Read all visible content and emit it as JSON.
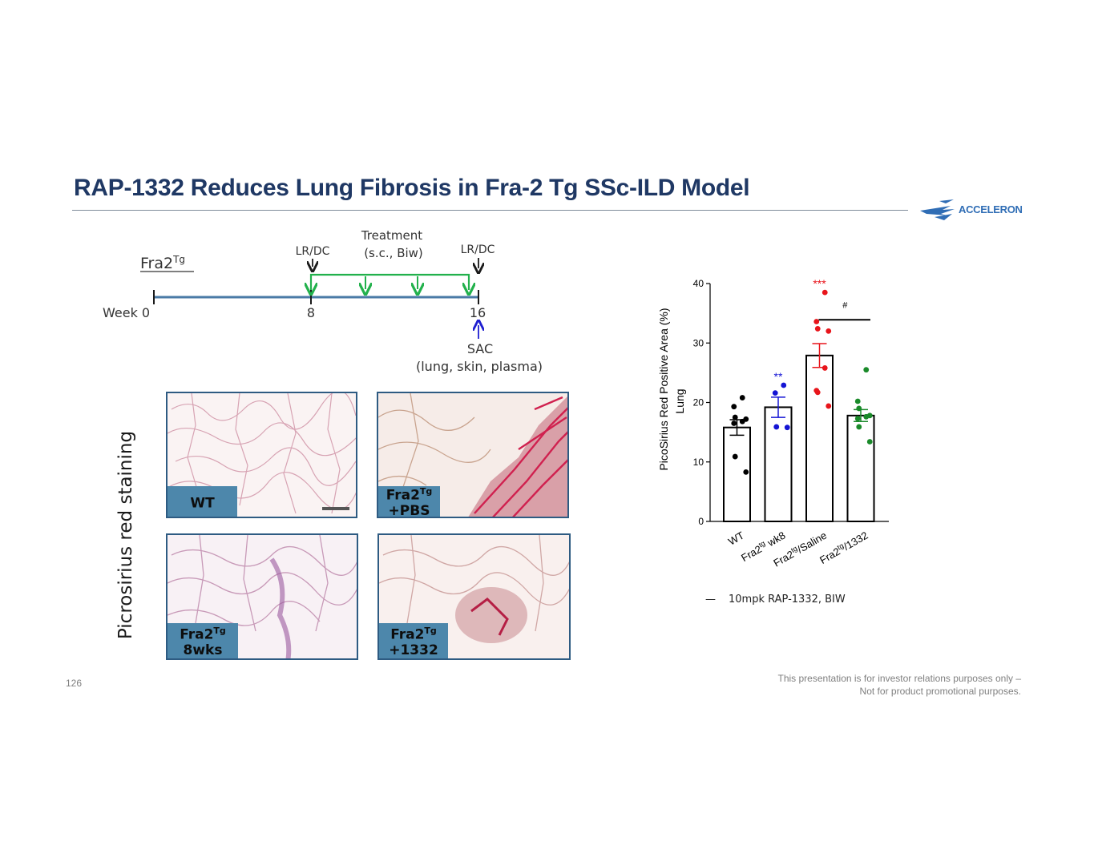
{
  "slide": {
    "title": "RAP-1332 Reduces Lung Fibrosis in Fra-2 Tg SSc-ILD Model",
    "logo_text": "ACCELERON",
    "page_number": "126",
    "disclaimer_line1": "This presentation is for investor relations purposes only –",
    "disclaimer_line2": "Not for product promotional purposes."
  },
  "timeline": {
    "model_label": "Fra2",
    "model_sup": "Tg",
    "week_label": "Week 0",
    "tick_8": "8",
    "tick_16": "16",
    "lrdc_left": "LR/DC",
    "lrdc_right": "LR/DC",
    "treatment_line1": "Treatment",
    "treatment_line2": "(s.c., Biw)",
    "sac_label": "SAC",
    "sac_detail": "(lung, skin, plasma)",
    "colors": {
      "axis": "#4a7aa6",
      "treatment": "#22b14c",
      "sac_arrow": "#1f1fd1"
    }
  },
  "images": {
    "side_label": "Picrosirius red staining",
    "panels": [
      {
        "line1": "WT",
        "line2": "",
        "sup": ""
      },
      {
        "line1": "Fra2",
        "line2": "+PBS",
        "sup": "Tg"
      },
      {
        "line1": "Fra2",
        "line2": "8wks",
        "sup": "Tg"
      },
      {
        "line1": "Fra2",
        "line2": "+1332",
        "sup": "Tg"
      }
    ]
  },
  "chart_data": {
    "type": "bar",
    "ylabel_line1": "PicoSirius Red Positive Area (%)",
    "ylabel_line2": "Lung",
    "ylim": [
      0,
      40
    ],
    "yticks": [
      0,
      10,
      20,
      30,
      40
    ],
    "categories": [
      "WT",
      "Fra2tg wk8",
      "Fra2tg/Saline",
      "Fra2tg/1332"
    ],
    "category_labels": [
      {
        "main": "WT",
        "sup": "",
        "rest": ""
      },
      {
        "main": "Fra2",
        "sup": "tg",
        "rest": " wk8"
      },
      {
        "main": "Fra2",
        "sup": "tg",
        "rest": "/Saline"
      },
      {
        "main": "Fra2",
        "sup": "tg",
        "rest": "/1332"
      }
    ],
    "means": [
      15.8,
      19.2,
      27.9,
      17.8
    ],
    "sem": [
      1.3,
      1.7,
      2.0,
      1.0
    ],
    "points": [
      [
        20.8,
        19.3,
        17.5,
        17.2,
        16.8,
        16.5,
        10.9,
        8.3
      ],
      [
        22.9,
        21.6,
        15.9,
        15.8
      ],
      [
        38.5,
        33.6,
        32.4,
        32.0,
        25.8,
        22.0,
        21.7,
        19.4
      ],
      [
        25.5,
        20.2,
        19.0,
        17.8,
        17.6,
        17.3,
        15.9,
        13.4
      ]
    ],
    "point_colors": [
      "#000000",
      "#1414d4",
      "#e8151b",
      "#1a8a2a"
    ],
    "significance": [
      {
        "category": 1,
        "text": "**",
        "color": "#1414d4"
      },
      {
        "category": 2,
        "text": "***",
        "color": "#e8151b"
      }
    ],
    "comparison": {
      "from": 2,
      "to": 3,
      "y": 33.9,
      "text": "#"
    },
    "legend_text": "10mpk RAP-1332, BIW",
    "legend_symbol": "—",
    "grid": false
  }
}
